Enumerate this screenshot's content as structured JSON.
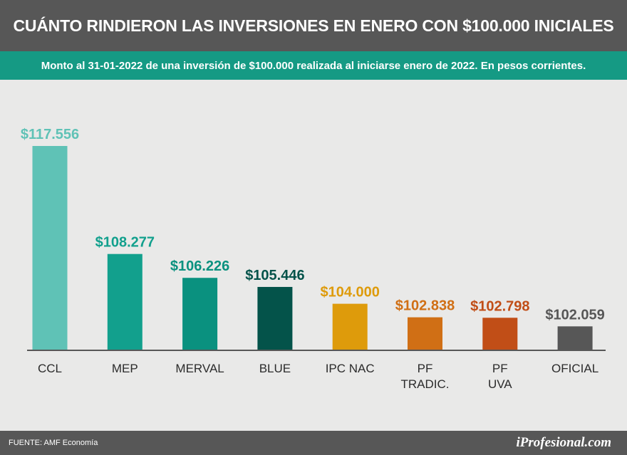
{
  "header": {
    "title": "CUÁNTO RINDIERON LAS INVERSIONES EN ENERO CON $100.000 INICIALES",
    "subtitle": "Monto al 31-01-2022 de una inversión de $100.000 realizada al iniciarse enero de 2022. En pesos corrientes."
  },
  "footer": {
    "source": "FUENTE: AMF Economía",
    "brand": "iProfesional.com"
  },
  "chart_data": {
    "type": "bar",
    "categories": [
      [
        "CCL"
      ],
      [
        "MEP"
      ],
      [
        "MERVAL"
      ],
      [
        "BLUE"
      ],
      [
        "IPC NAC"
      ],
      [
        "PF",
        "TRADIC."
      ],
      [
        "PF",
        "UVA"
      ],
      [
        "OFICIAL"
      ]
    ],
    "values": [
      117556,
      108277,
      106226,
      105446,
      104000,
      102838,
      102798,
      102059
    ],
    "value_labels": [
      "$117.556",
      "$108.277",
      "$106.226",
      "$105.446",
      "$104.000",
      "$102.838",
      "$102.798",
      "$102.059"
    ],
    "colors": [
      "#5fc2b6",
      "#12a08d",
      "#0a917f",
      "#04534a",
      "#de9b0b",
      "#d06f15",
      "#c14e17",
      "#575757"
    ],
    "ylim": [
      100000,
      118000
    ],
    "grid": false,
    "axis_color": "#575757"
  }
}
